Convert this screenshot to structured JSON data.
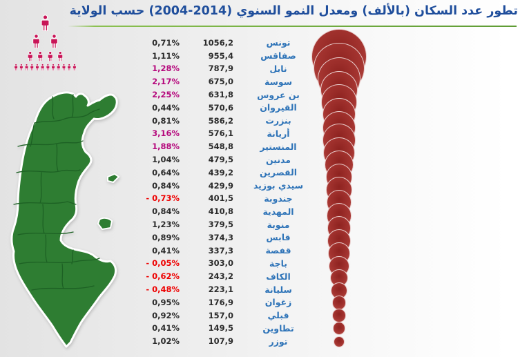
{
  "title": "تطور عدد السكان (بالألف) ومعدل النمو السنوي (2014-2004) حسب الولاية",
  "colors": {
    "title_blue": "#1f4e9c",
    "name_blue": "#2f74b8",
    "value_black": "#2b2b2b",
    "growth_high_magenta": "#b5087c",
    "growth_negative_red": "#ee0000",
    "bubble_red": "#a43430",
    "map_green": "#2e7d32",
    "map_border_green": "#1d6124",
    "pictogram_pink": "#c81557",
    "underline_green": "#76b043"
  },
  "pictogram": {
    "rows_counts": [
      1,
      2,
      4,
      12
    ]
  },
  "chart_data": {
    "type": "bubble",
    "title": "تطور عدد السكان (بالألف) ومعدل النمو السنوي (2014-2004) حسب الولاية",
    "value_unit": "thousands",
    "legend_position": "none",
    "rows": [
      {
        "name": "تونس",
        "value": "1056,2",
        "pct": "0,71%",
        "pop": 1056.2,
        "growth": 0.71,
        "style": "normal"
      },
      {
        "name": "صفاقس",
        "value": "955,4",
        "pct": "1,11%",
        "pop": 955.4,
        "growth": 1.11,
        "style": "normal"
      },
      {
        "name": "نابل",
        "value": "787,9",
        "pct": "1,28%",
        "pop": 787.9,
        "growth": 1.28,
        "style": "high"
      },
      {
        "name": "سوسة",
        "value": "675,0",
        "pct": "2,17%",
        "pop": 675.0,
        "growth": 2.17,
        "style": "high"
      },
      {
        "name": "بن عروس",
        "value": "631,8",
        "pct": "2,25%",
        "pop": 631.8,
        "growth": 2.25,
        "style": "high"
      },
      {
        "name": "القيروان",
        "value": "570,6",
        "pct": "0,44%",
        "pop": 570.6,
        "growth": 0.44,
        "style": "normal"
      },
      {
        "name": "بنزرت",
        "value": "586,2",
        "pct": "0,81%",
        "pop": 586.2,
        "growth": 0.81,
        "style": "normal"
      },
      {
        "name": "أريانة",
        "value": "576,1",
        "pct": "3,16%",
        "pop": 576.1,
        "growth": 3.16,
        "style": "high"
      },
      {
        "name": "المنستير",
        "value": "548,8",
        "pct": "1,88%",
        "pop": 548.8,
        "growth": 1.88,
        "style": "high"
      },
      {
        "name": "مدنين",
        "value": "479,5",
        "pct": "1,04%",
        "pop": 479.5,
        "growth": 1.04,
        "style": "normal"
      },
      {
        "name": "القصرين",
        "value": "439,2",
        "pct": "0,64%",
        "pop": 439.2,
        "growth": 0.64,
        "style": "normal"
      },
      {
        "name": "سيدي بوزيد",
        "value": "429,9",
        "pct": "0,84%",
        "pop": 429.9,
        "growth": 0.84,
        "style": "normal"
      },
      {
        "name": "جندوبة",
        "value": "401,5",
        "pct": "- 0,73%",
        "pop": 401.5,
        "growth": -0.73,
        "style": "negative"
      },
      {
        "name": "المهدية",
        "value": "410,8",
        "pct": "0,84%",
        "pop": 410.8,
        "growth": 0.84,
        "style": "normal"
      },
      {
        "name": "منوبة",
        "value": "379,5",
        "pct": "1,23%",
        "pop": 379.5,
        "growth": 1.23,
        "style": "normal"
      },
      {
        "name": "قابس",
        "value": "374,3",
        "pct": "0,89%",
        "pop": 374.3,
        "growth": 0.89,
        "style": "normal"
      },
      {
        "name": "قفصة",
        "value": "337,3",
        "pct": "0,41%",
        "pop": 337.3,
        "growth": 0.41,
        "style": "normal"
      },
      {
        "name": "باجة",
        "value": "303,0",
        "pct": "- 0,05%",
        "pop": 303.0,
        "growth": -0.05,
        "style": "negative"
      },
      {
        "name": "الكاف",
        "value": "243,2",
        "pct": "- 0,62%",
        "pop": 243.2,
        "growth": -0.62,
        "style": "negative"
      },
      {
        "name": "سليانة",
        "value": "223,1",
        "pct": "- 0,48%",
        "pop": 223.1,
        "growth": -0.48,
        "style": "negative"
      },
      {
        "name": "زغوان",
        "value": "176,9",
        "pct": "0,95%",
        "pop": 176.9,
        "growth": 0.95,
        "style": "normal"
      },
      {
        "name": "قبلي",
        "value": "157,0",
        "pct": "0,92%",
        "pop": 157.0,
        "growth": 0.92,
        "style": "normal"
      },
      {
        "name": "تطاوين",
        "value": "149,5",
        "pct": "0,41%",
        "pop": 149.5,
        "growth": 0.41,
        "style": "normal"
      },
      {
        "name": "توزر",
        "value": "107,9",
        "pct": "1,02%",
        "pop": 107.9,
        "growth": 1.02,
        "style": "normal"
      }
    ]
  }
}
